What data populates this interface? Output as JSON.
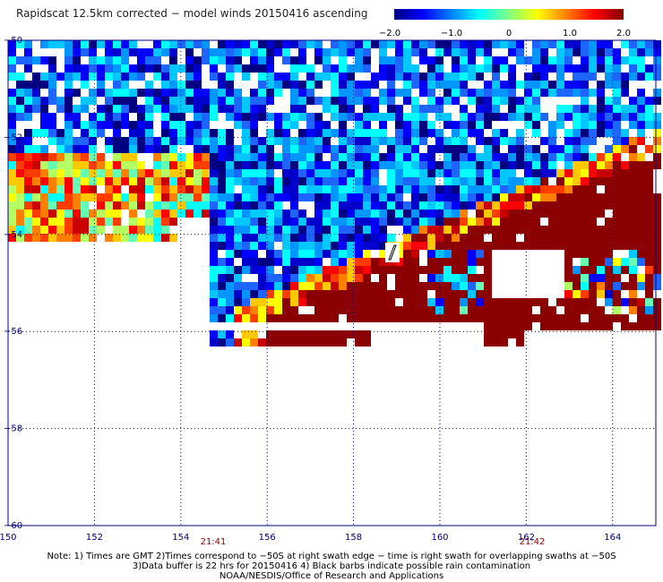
{
  "title": "Rapidscat 12.5km corrected − model winds 20150416 ascending",
  "colorbar": {
    "ticks": [
      "−2.0",
      "−1.0",
      "0",
      "1.0",
      "2.0"
    ],
    "tick_values": [
      -2.0,
      -1.0,
      0,
      1.0,
      2.0
    ],
    "colors": [
      "#000080",
      "#0000ff",
      "#0080ff",
      "#00ffff",
      "#80ff80",
      "#ffff00",
      "#ff8000",
      "#ff0000",
      "#800000"
    ]
  },
  "axes": {
    "lon_ticks": [
      "150",
      "152",
      "154",
      "156",
      "158",
      "160",
      "162",
      "164"
    ],
    "lat_ticks": [
      "−50",
      "−52",
      "−54",
      "−56",
      "−58",
      "−60"
    ],
    "lon_range": [
      150,
      165
    ],
    "lat_range": [
      -60,
      -50
    ],
    "grid": "dotted",
    "grid_color": "#000080"
  },
  "time_labels": [
    {
      "text": "21:41",
      "lon": 154.6
    },
    {
      "text": "21:42",
      "lon": 162.2
    }
  ],
  "notes": [
    "Note: 1) Times are GMT 2)Times correspond to −50S at right swath edge − time is right swath for overlapping swaths at −50S",
    "3)Data buffer is 22 hrs for 20150416 4) Black barbs indicate possible rain contamination",
    "NOAA/NESDIS/Office of Research and Applications"
  ],
  "colors": {
    "dark_red": "#8b0000",
    "axis": "#000080",
    "text": "#000000"
  }
}
